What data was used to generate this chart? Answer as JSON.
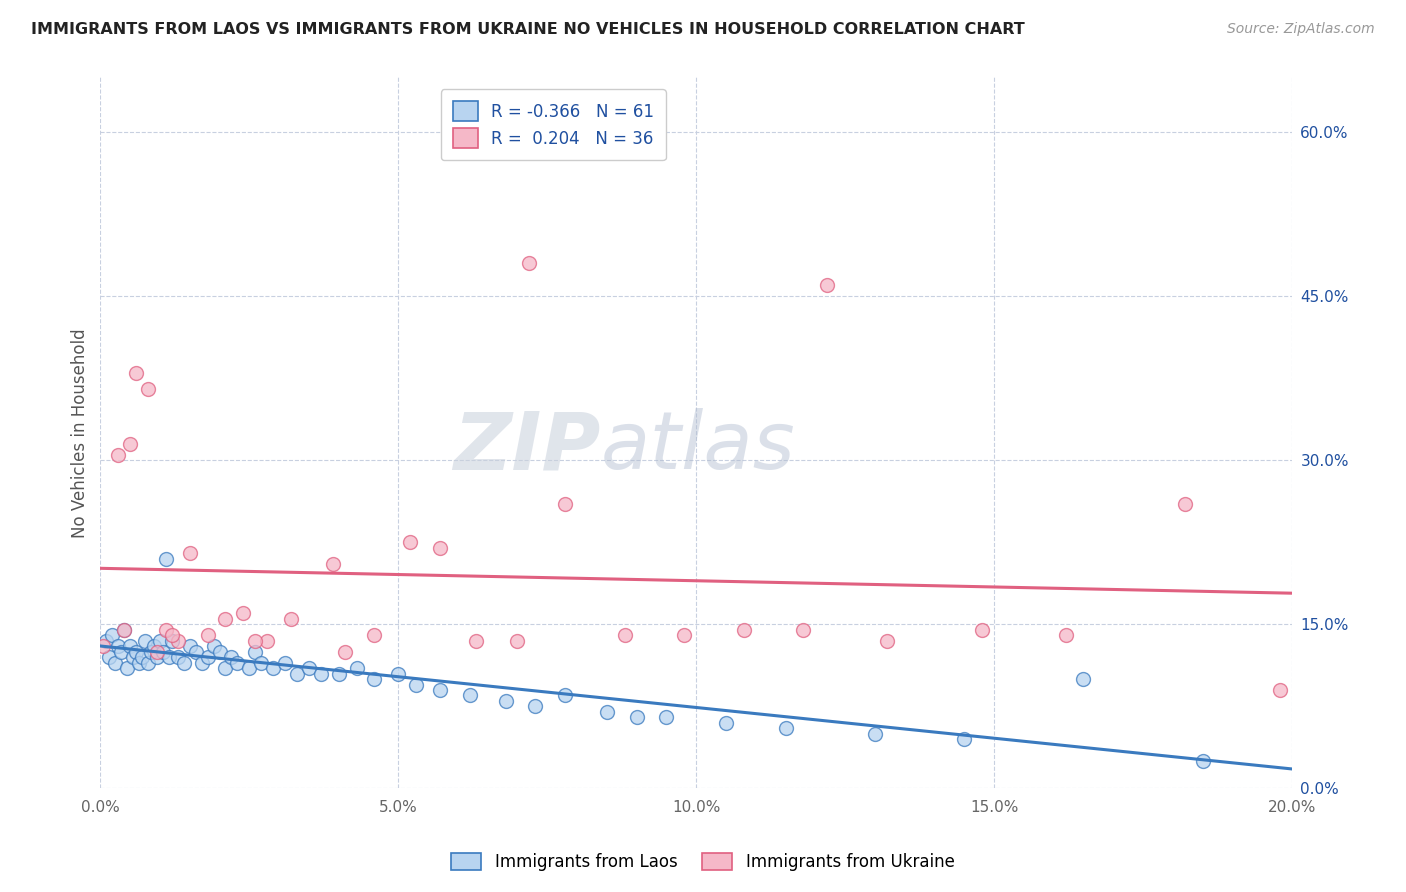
{
  "title": "IMMIGRANTS FROM LAOS VS IMMIGRANTS FROM UKRAINE NO VEHICLES IN HOUSEHOLD CORRELATION CHART",
  "source": "Source: ZipAtlas.com",
  "ylabel": "No Vehicles in Household",
  "x_label_laos": "Immigrants from Laos",
  "x_label_ukraine": "Immigrants from Ukraine",
  "laos_R": -0.366,
  "laos_N": 61,
  "ukraine_R": 0.204,
  "ukraine_N": 36,
  "laos_color": "#b8d4f0",
  "ukraine_color": "#f5b8c8",
  "laos_line_color": "#3a7abf",
  "ukraine_line_color": "#e06080",
  "legend_R_color": "#2050a0",
  "xlim": [
    0.0,
    20.0
  ],
  "ylim": [
    0.0,
    65.0
  ],
  "right_yticks": [
    0.0,
    15.0,
    30.0,
    45.0,
    60.0
  ],
  "right_yticklabels": [
    "0.0%",
    "15.0%",
    "30.0%",
    "45.0%",
    "60.0%"
  ],
  "xticks": [
    0.0,
    5.0,
    10.0,
    15.0,
    20.0
  ],
  "xticklabels": [
    "0.0%",
    "5.0%",
    "10.0%",
    "15.0%",
    "20.0%"
  ],
  "background_color": "#ffffff",
  "grid_color": "#c8d0e0",
  "watermark_zip": "ZIP",
  "watermark_atlas": "atlas",
  "laos_x": [
    0.1,
    0.15,
    0.2,
    0.25,
    0.3,
    0.35,
    0.4,
    0.45,
    0.5,
    0.55,
    0.6,
    0.65,
    0.7,
    0.75,
    0.8,
    0.85,
    0.9,
    0.95,
    1.0,
    1.05,
    1.1,
    1.15,
    1.2,
    1.3,
    1.4,
    1.5,
    1.6,
    1.7,
    1.8,
    1.9,
    2.0,
    2.1,
    2.2,
    2.3,
    2.5,
    2.6,
    2.7,
    2.9,
    3.1,
    3.3,
    3.5,
    3.7,
    4.0,
    4.3,
    4.6,
    5.0,
    5.3,
    5.7,
    6.2,
    6.8,
    7.3,
    7.8,
    8.5,
    9.0,
    9.5,
    10.5,
    11.5,
    13.0,
    14.5,
    16.5,
    18.5
  ],
  "laos_y": [
    13.5,
    12.0,
    14.0,
    11.5,
    13.0,
    12.5,
    14.5,
    11.0,
    13.0,
    12.0,
    12.5,
    11.5,
    12.0,
    13.5,
    11.5,
    12.5,
    13.0,
    12.0,
    13.5,
    12.5,
    21.0,
    12.0,
    13.5,
    12.0,
    11.5,
    13.0,
    12.5,
    11.5,
    12.0,
    13.0,
    12.5,
    11.0,
    12.0,
    11.5,
    11.0,
    12.5,
    11.5,
    11.0,
    11.5,
    10.5,
    11.0,
    10.5,
    10.5,
    11.0,
    10.0,
    10.5,
    9.5,
    9.0,
    8.5,
    8.0,
    7.5,
    8.5,
    7.0,
    6.5,
    6.5,
    6.0,
    5.5,
    5.0,
    4.5,
    10.0,
    2.5
  ],
  "ukraine_x": [
    0.05,
    0.3,
    0.5,
    0.6,
    0.8,
    0.95,
    1.1,
    1.3,
    1.5,
    1.8,
    2.1,
    2.4,
    2.8,
    3.2,
    3.9,
    4.6,
    5.2,
    5.7,
    6.3,
    7.0,
    7.8,
    8.8,
    9.8,
    10.8,
    11.8,
    13.2,
    14.8,
    16.2,
    18.2,
    19.8,
    0.4,
    1.2,
    2.6,
    4.1,
    7.2,
    12.2
  ],
  "ukraine_y": [
    13.0,
    30.5,
    31.5,
    38.0,
    36.5,
    12.5,
    14.5,
    13.5,
    21.5,
    14.0,
    15.5,
    16.0,
    13.5,
    15.5,
    20.5,
    14.0,
    22.5,
    22.0,
    13.5,
    13.5,
    26.0,
    14.0,
    14.0,
    14.5,
    14.5,
    13.5,
    14.5,
    14.0,
    26.0,
    9.0,
    14.5,
    14.0,
    13.5,
    12.5,
    48.0,
    46.0
  ]
}
